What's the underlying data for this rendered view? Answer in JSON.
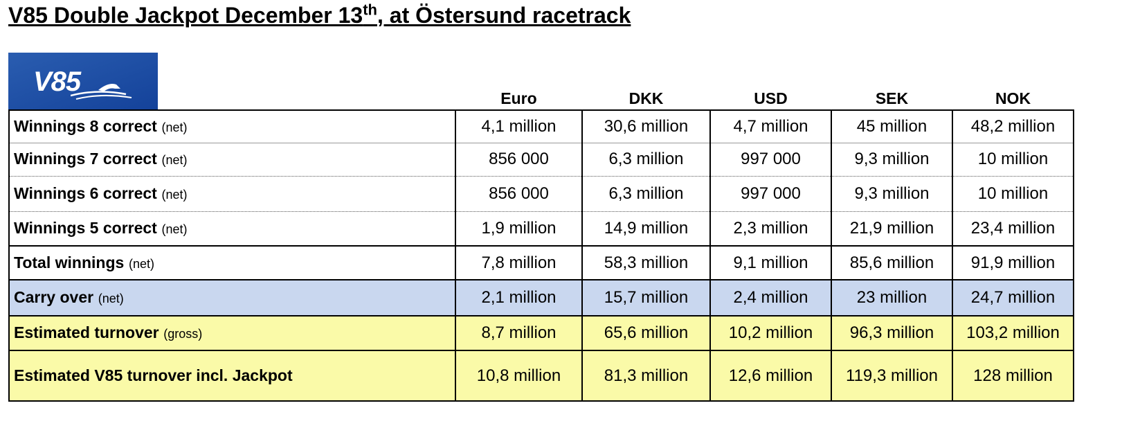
{
  "header": {
    "title": {
      "main": "V85 Double Jackpot December 13",
      "sup": "th",
      "rest": ", at Östersund racetrack"
    }
  },
  "logo": {
    "text": "V85"
  },
  "table": {
    "columns": [
      "Euro",
      "DKK",
      "USD",
      "SEK",
      "NOK"
    ],
    "rows": [
      {
        "label": "Winnings 8 correct",
        "note": "(net)",
        "values": [
          "4,1 million",
          "30,6 million",
          "4,7 million",
          "45 million",
          "48,2 million"
        ]
      },
      {
        "label": "Winnings 7 correct",
        "note": "(net)",
        "values": [
          "856 000",
          "6,3 million",
          "997 000",
          "9,3 million",
          "10 million"
        ]
      },
      {
        "label": "Winnings 6 correct",
        "note": "(net)",
        "values": [
          "856 000",
          "6,3 million",
          "997 000",
          "9,3 million",
          "10 million"
        ]
      },
      {
        "label": "Winnings 5 correct",
        "note": "(net)",
        "values": [
          "1,9 million",
          "14,9 million",
          "2,3 million",
          "21,9 million",
          "23,4 million"
        ]
      },
      {
        "label": "Total winnings",
        "note": "(net)",
        "values": [
          "7,8 million",
          "58,3 million",
          "9,1 million",
          "85,6 million",
          "91,9 million"
        ]
      },
      {
        "label": "Carry over",
        "note": "(net)",
        "values": [
          "2,1 million",
          "15,7 million",
          "2,4 million",
          "23 million",
          "24,7 million"
        ]
      },
      {
        "label": "Estimated turnover",
        "note": "(gross)",
        "values": [
          "8,7 million",
          "65,6 million",
          "10,2 million",
          "96,3 million",
          "103,2 million"
        ]
      },
      {
        "label": "Estimated V85 turnover incl. Jackpot",
        "values": [
          "10,8 million",
          "81,3 million",
          "12,6 million",
          "119,3 million",
          "128 million"
        ]
      }
    ]
  }
}
